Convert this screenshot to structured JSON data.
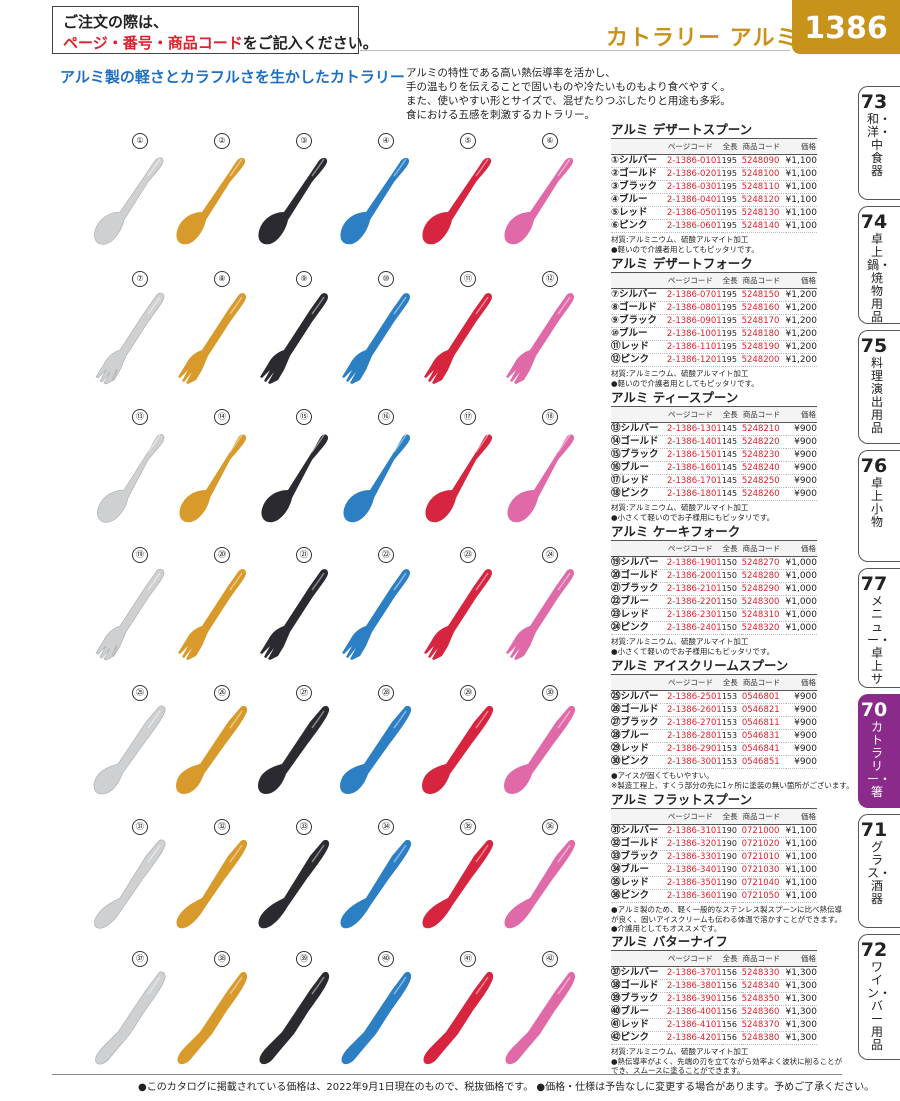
{
  "header": {
    "notice_line1": "ご注文の際は、",
    "notice_line2_red": "ページ・番号・商品コード",
    "notice_line2_rest": "をご記入ください。",
    "category_title": "カトラリー アルミ",
    "page_number": "1386"
  },
  "headline": "アルミ製の軽さとカラフルさを生かしたカトラリー",
  "intro": [
    "アルミの特性である高い熱伝導率を活かし、",
    "手の温もりを伝えることで固いものや冷たいものもより食べやすく。",
    "また、使いやすい形とサイズで、混ぜたりつぶしたりと用途も多彩。",
    "食における五感を刺激するカトラリー。"
  ],
  "colors": {
    "silver": "#cfd0d2",
    "gold": "#d89a2a",
    "black": "#2a2a30",
    "blue": "#2d7fc4",
    "red": "#d8253f",
    "pink": "#e06aa8",
    "brand": "#c7931b",
    "accent_red": "#e0202c",
    "headline_blue": "#1f6fc2",
    "tab_active": "#8a2a8a"
  },
  "product_rows": [
    {
      "kind": "spoon",
      "numbers": [
        "①",
        "②",
        "③",
        "④",
        "⑤",
        "⑥"
      ]
    },
    {
      "kind": "fork",
      "numbers": [
        "⑦",
        "⑧",
        "⑨",
        "⑩",
        "⑪",
        "⑫"
      ]
    },
    {
      "kind": "teaspoon",
      "numbers": [
        "⑬",
        "⑭",
        "⑮",
        "⑯",
        "⑰",
        "⑱"
      ]
    },
    {
      "kind": "cakefork",
      "numbers": [
        "⑲",
        "⑳",
        "㉑",
        "㉒",
        "㉓",
        "㉔"
      ]
    },
    {
      "kind": "icespoon",
      "numbers": [
        "㉕",
        "㉖",
        "㉗",
        "㉘",
        "㉙",
        "㉚"
      ]
    },
    {
      "kind": "flatspoon",
      "numbers": [
        "㉛",
        "㉜",
        "㉝",
        "㉞",
        "㉟",
        "㊱"
      ]
    },
    {
      "kind": "knife",
      "numbers": [
        "㊲",
        "㊳",
        "㊴",
        "㊵",
        "㊶",
        "㊷"
      ]
    }
  ],
  "table_headers": {
    "code": "ページコード",
    "length": "全長",
    "product_code": "商品コード",
    "price": "価格"
  },
  "products": [
    {
      "title": "アルミ デザートスプーン",
      "rows": [
        [
          "①シルバー",
          "2-1386-0101",
          "195",
          "5248090",
          "¥1,100"
        ],
        [
          "②ゴールド",
          "2-1386-0201",
          "195",
          "5248100",
          "¥1,100"
        ],
        [
          "③ブラック",
          "2-1386-0301",
          "195",
          "5248110",
          "¥1,100"
        ],
        [
          "④ブルー",
          "2-1386-0401",
          "195",
          "5248120",
          "¥1,100"
        ],
        [
          "⑤レッド",
          "2-1386-0501",
          "195",
          "5248130",
          "¥1,100"
        ],
        [
          "⑥ピンク",
          "2-1386-0601",
          "195",
          "5248140",
          "¥1,100"
        ]
      ],
      "notes": [
        "材質:アルミニウム、硫酸アルマイト加工",
        "●軽いので介護者用としてもピッタリです。"
      ]
    },
    {
      "title": "アルミ デザートフォーク",
      "rows": [
        [
          "⑦シルバー",
          "2-1386-0701",
          "195",
          "5248150",
          "¥1,200"
        ],
        [
          "⑧ゴールド",
          "2-1386-0801",
          "195",
          "5248160",
          "¥1,200"
        ],
        [
          "⑨ブラック",
          "2-1386-0901",
          "195",
          "5248170",
          "¥1,200"
        ],
        [
          "⑩ブルー",
          "2-1386-1001",
          "195",
          "5248180",
          "¥1,200"
        ],
        [
          "⑪レッド",
          "2-1386-1101",
          "195",
          "5248190",
          "¥1,200"
        ],
        [
          "⑫ピンク",
          "2-1386-1201",
          "195",
          "5248200",
          "¥1,200"
        ]
      ],
      "notes": [
        "材質:アルミニウム、硫酸アルマイト加工",
        "●軽いので介護者用としてもピッタリです。"
      ]
    },
    {
      "title": "アルミ ティースプーン",
      "rows": [
        [
          "⑬シルバー",
          "2-1386-1301",
          "145",
          "5248210",
          "¥900"
        ],
        [
          "⑭ゴールド",
          "2-1386-1401",
          "145",
          "5248220",
          "¥900"
        ],
        [
          "⑮ブラック",
          "2-1386-1501",
          "145",
          "5248230",
          "¥900"
        ],
        [
          "⑯ブルー",
          "2-1386-1601",
          "145",
          "5248240",
          "¥900"
        ],
        [
          "⑰レッド",
          "2-1386-1701",
          "145",
          "5248250",
          "¥900"
        ],
        [
          "⑱ピンク",
          "2-1386-1801",
          "145",
          "5248260",
          "¥900"
        ]
      ],
      "notes": [
        "材質:アルミニウム、硫酸アルマイト加工",
        "●小さくて軽いのでお子様用にもピッタリです。"
      ]
    },
    {
      "title": "アルミ ケーキフォーク",
      "rows": [
        [
          "⑲シルバー",
          "2-1386-1901",
          "150",
          "5248270",
          "¥1,000"
        ],
        [
          "⑳ゴールド",
          "2-1386-2001",
          "150",
          "5248280",
          "¥1,000"
        ],
        [
          "㉑ブラック",
          "2-1386-2101",
          "150",
          "5248290",
          "¥1,000"
        ],
        [
          "㉒ブルー",
          "2-1386-2201",
          "150",
          "5248300",
          "¥1,000"
        ],
        [
          "㉓レッド",
          "2-1386-2301",
          "150",
          "5248310",
          "¥1,000"
        ],
        [
          "㉔ピンク",
          "2-1386-2401",
          "150",
          "5248320",
          "¥1,000"
        ]
      ],
      "notes": [
        "材質:アルミニウム、硫酸アルマイト加工",
        "●小さくて軽いのでお子様用にもピッタリです。"
      ]
    },
    {
      "title": "アルミ アイスクリームスプーン",
      "rows": [
        [
          "㉕シルバー",
          "2-1386-2501",
          "153",
          "0546801",
          "¥900"
        ],
        [
          "㉖ゴールド",
          "2-1386-2601",
          "153",
          "0546821",
          "¥900"
        ],
        [
          "㉗ブラック",
          "2-1386-2701",
          "153",
          "0546811",
          "¥900"
        ],
        [
          "㉘ブルー",
          "2-1386-2801",
          "153",
          "0546831",
          "¥900"
        ],
        [
          "㉙レッド",
          "2-1386-2901",
          "153",
          "0546841",
          "¥900"
        ],
        [
          "㉚ピンク",
          "2-1386-3001",
          "153",
          "0546851",
          "¥900"
        ]
      ],
      "notes": [
        "●アイスが固くてもいやすい。",
        "※製造工程上、すくう部分の先に1ヶ所に塗装の無い箇所がございます。"
      ]
    },
    {
      "title": "アルミ フラットスプーン",
      "rows": [
        [
          "㉛シルバー",
          "2-1386-3101",
          "190",
          "0721000",
          "¥1,100"
        ],
        [
          "㉜ゴールド",
          "2-1386-3201",
          "190",
          "0721020",
          "¥1,100"
        ],
        [
          "㉝ブラック",
          "2-1386-3301",
          "190",
          "0721010",
          "¥1,100"
        ],
        [
          "㉞ブルー",
          "2-1386-3401",
          "190",
          "0721030",
          "¥1,100"
        ],
        [
          "㉟レッド",
          "2-1386-3501",
          "190",
          "0721040",
          "¥1,100"
        ],
        [
          "㊱ピンク",
          "2-1386-3601",
          "190",
          "0721050",
          "¥1,100"
        ]
      ],
      "notes": [
        "●アルミ製のため、軽く一般的なステンレス製スプーンに比べ熱伝導",
        "が良く、固いアイスクリームも伝わる体温で溶かすことができます。",
        "●介護用としてもオススメです。"
      ]
    },
    {
      "title": "アルミ バターナイフ",
      "rows": [
        [
          "㊲シルバー",
          "2-1386-3701",
          "156",
          "5248330",
          "¥1,300"
        ],
        [
          "㊳ゴールド",
          "2-1386-3801",
          "156",
          "5248340",
          "¥1,300"
        ],
        [
          "㊴ブラック",
          "2-1386-3901",
          "156",
          "5248350",
          "¥1,300"
        ],
        [
          "㊵ブルー",
          "2-1386-4001",
          "156",
          "5248360",
          "¥1,300"
        ],
        [
          "㊶レッド",
          "2-1386-4101",
          "156",
          "5248370",
          "¥1,300"
        ],
        [
          "㊷ピンク",
          "2-1386-4201",
          "156",
          "5248380",
          "¥1,300"
        ]
      ],
      "notes": [
        "材質:アルミニウム、硫酸アルマイト加工",
        "●熱伝導率がよく、先端の刃を立てながら効率よく波状に削ることが",
        "でき、スムースに塗ることができます。"
      ]
    }
  ],
  "side_tabs": [
    {
      "num": "73",
      "label": "和・洋・中食器",
      "active": false
    },
    {
      "num": "74",
      "label": "卓上鍋・焼物用品",
      "active": false
    },
    {
      "num": "75",
      "label": "料理演出用品",
      "active": false
    },
    {
      "num": "76",
      "label": "卓上小物",
      "active": false
    },
    {
      "num": "77",
      "label": "メニュー・卓上サイン",
      "active": false
    },
    {
      "num": "70",
      "label": "カトラリー・箸",
      "active": true
    },
    {
      "num": "71",
      "label": "グラス・酒器",
      "active": false
    },
    {
      "num": "72",
      "label": "ワイン・バー用品",
      "active": false
    }
  ],
  "footer": "●このカタログに掲載されている価格は、2022年9月1日現在のもので、税抜価格です。 ●価格・仕様は予告なしに変更する場合があります。予めご了承ください。"
}
